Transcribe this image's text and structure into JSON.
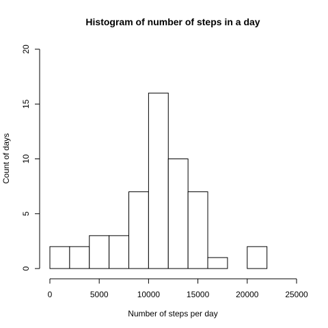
{
  "chart_data": {
    "type": "bar",
    "title": "Histogram of number of steps in  a day",
    "xlabel": "Number of steps per day",
    "ylabel": "Count of days",
    "bin_edges": [
      0,
      2000,
      4000,
      6000,
      8000,
      10000,
      12000,
      14000,
      16000,
      18000,
      20000,
      22000
    ],
    "values": [
      2,
      2,
      3,
      3,
      7,
      16,
      10,
      7,
      1,
      0,
      2
    ],
    "xlim": [
      0,
      25000
    ],
    "ylim": [
      0,
      20
    ],
    "x_ticks": [
      0,
      5000,
      10000,
      15000,
      20000,
      25000
    ],
    "y_ticks": [
      0,
      5,
      10,
      15,
      20
    ],
    "grid": false,
    "colors": {
      "bar_fill": "#ffffff",
      "bar_stroke": "#000000"
    }
  }
}
